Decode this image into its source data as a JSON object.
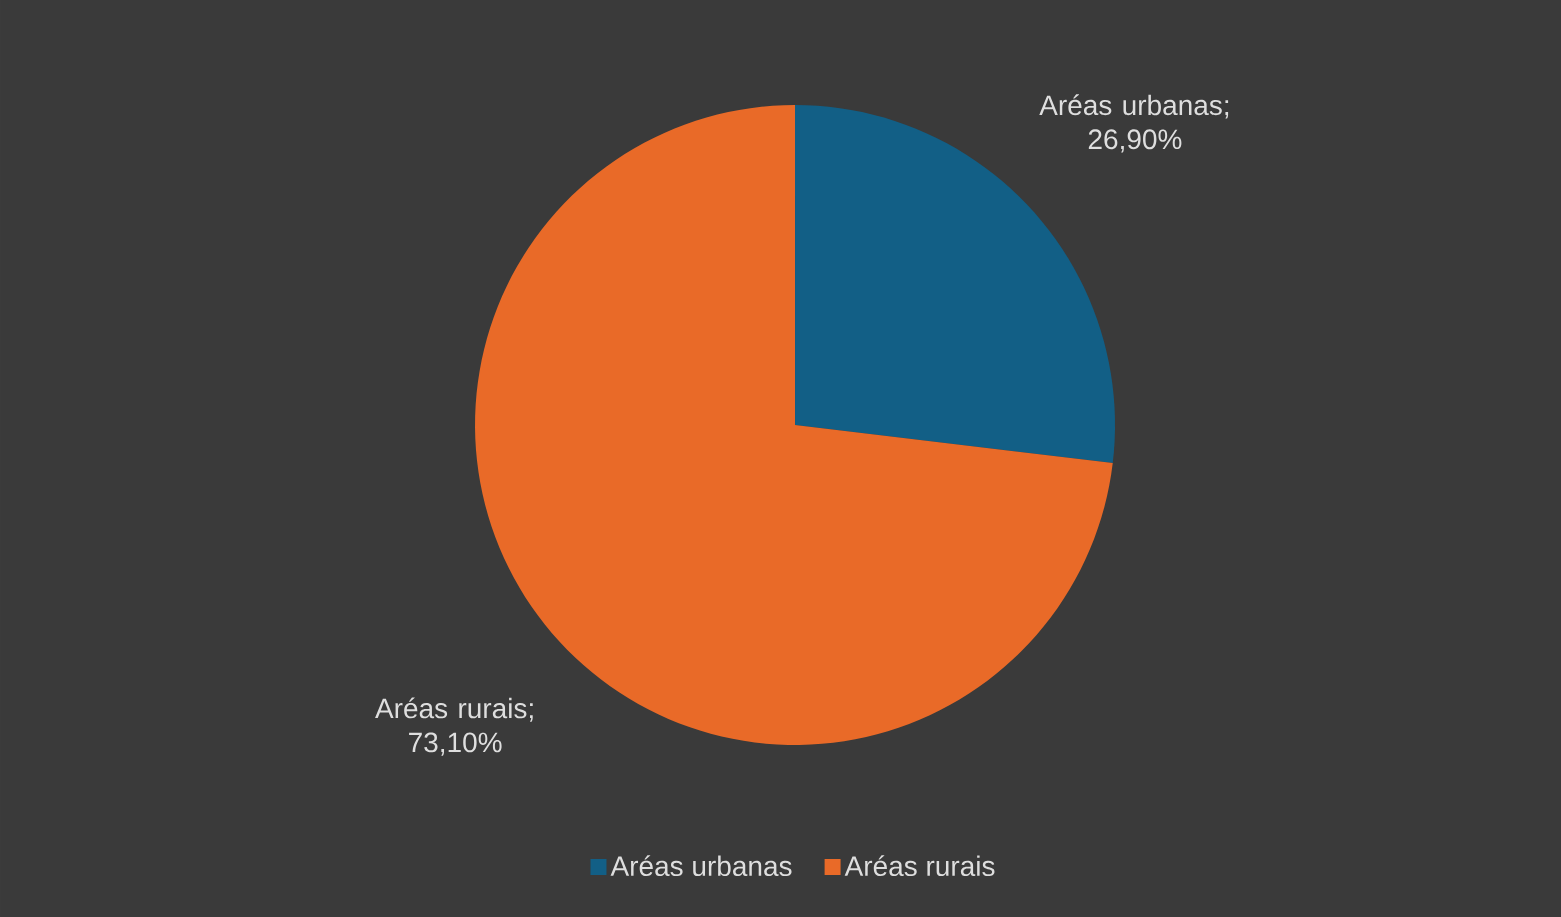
{
  "chart_data": {
    "type": "pie",
    "categories": [
      "Aréas urbanas",
      "Aréas rurais"
    ],
    "values": [
      26.9,
      73.1
    ],
    "colors": [
      "#125f86",
      "#e96a28"
    ],
    "value_labels": [
      "Aréas urbanas; 26,90%",
      "Aréas rurais; 73,10%"
    ],
    "legend": "bottom"
  }
}
